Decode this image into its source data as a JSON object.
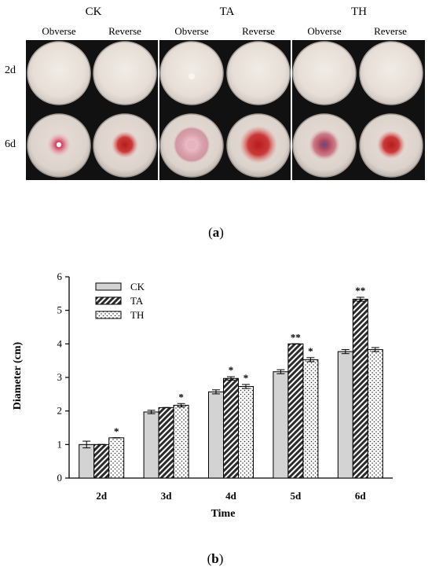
{
  "panel_a": {
    "groups": [
      "CK",
      "TA",
      "TH"
    ],
    "sides": [
      "Obverse",
      "Reverse"
    ],
    "rows": [
      "2d",
      "6d"
    ],
    "caption": "(a)"
  },
  "panel_b": {
    "caption": "(b)"
  },
  "chart_data": {
    "type": "bar",
    "categories": [
      "2d",
      "3d",
      "4d",
      "5d",
      "6d"
    ],
    "series": [
      {
        "name": "CK",
        "values": [
          1.0,
          1.97,
          2.57,
          3.17,
          3.77
        ],
        "errors": [
          0.1,
          0.05,
          0.06,
          0.06,
          0.06
        ],
        "marks": [
          "",
          "",
          "",
          "",
          ""
        ]
      },
      {
        "name": "TA",
        "values": [
          1.0,
          2.1,
          2.97,
          4.0,
          5.33
        ],
        "errors": [
          0.0,
          0.0,
          0.05,
          0.0,
          0.06
        ],
        "marks": [
          "",
          "",
          "*",
          "**",
          "**"
        ]
      },
      {
        "name": "TH",
        "values": [
          1.2,
          2.17,
          2.73,
          3.53,
          3.83
        ],
        "errors": [
          0.0,
          0.05,
          0.06,
          0.06,
          0.06
        ],
        "marks": [
          "*",
          "*",
          "*",
          "*",
          ""
        ]
      }
    ],
    "xlabel": "Time",
    "ylabel": "Diameter (cm)",
    "ylim": [
      0,
      6
    ],
    "yticks": [
      0,
      1,
      2,
      3,
      4,
      5,
      6
    ],
    "legend": "top-left",
    "grid": false,
    "colors": {
      "CK": "#d3d3d3",
      "TA": "#333333",
      "TH": "#ffffff"
    }
  }
}
